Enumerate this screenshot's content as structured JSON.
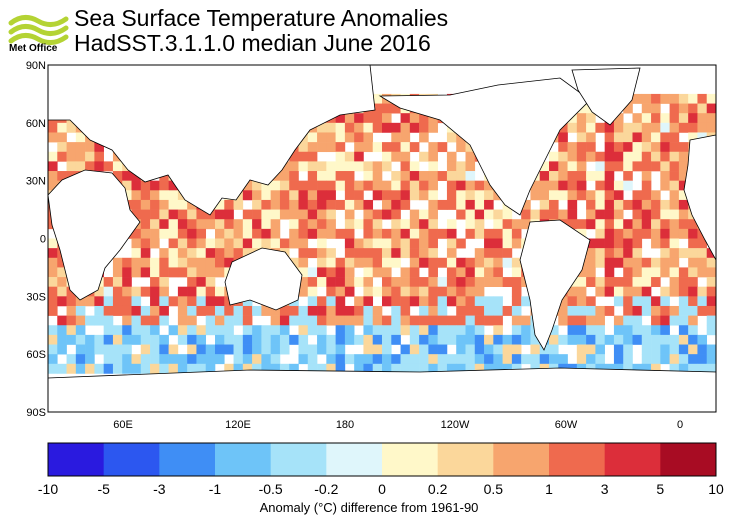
{
  "header": {
    "logo_text": "Met Office",
    "title_line1": "Sea Surface Temperature Anomalies",
    "title_line2": "HadSST.3.1.1.0 median June 2016"
  },
  "map": {
    "lat_labels": [
      "90N",
      "60N",
      "30N",
      "0",
      "30S",
      "60S",
      "90S"
    ],
    "lon_labels": [
      "60E",
      "120E",
      "180",
      "120W",
      "60W",
      "0"
    ]
  },
  "colorbar": {
    "tick_labels": [
      "-10",
      "-5",
      "-3",
      "-1",
      "-0.5",
      "-0.2",
      "0",
      "0.2",
      "0.5",
      "1",
      "3",
      "5",
      "10"
    ],
    "colors": [
      "#2a1adf",
      "#2c57f0",
      "#3f8ef5",
      "#6ec4f8",
      "#a6e3f9",
      "#dff6fb",
      "#fff8c9",
      "#fbd79b",
      "#f7a56e",
      "#ef6a4e",
      "#dc2e3a",
      "#a80c23"
    ],
    "caption": "Anomaly (°C) difference from 1961-90"
  },
  "colors": {
    "land": "#ffffff",
    "coast": "#000000",
    "warm": "#f7a56e",
    "hot": "#ef6a4e",
    "cool": "#a6e3f9",
    "cold": "#3f8ef5"
  }
}
